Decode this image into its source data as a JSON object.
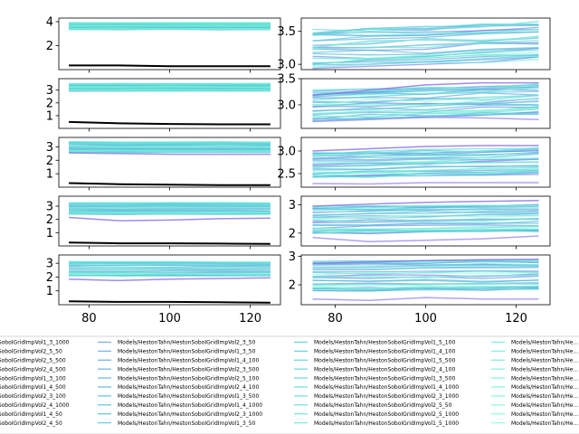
{
  "chart_data": {
    "type": "line",
    "layout": "5 rows x 2 columns of panels, shared x axis, legend below",
    "x": [
      75,
      87.5,
      100,
      112.5,
      125
    ],
    "xlim": [
      72.5,
      127.5
    ],
    "xticks": [
      "80",
      "100",
      "120"
    ],
    "colors": {
      "reference_line": "#000000",
      "palette_start": "#7b68ee",
      "palette_mid": "#40c4d8",
      "palette_end": "#7fffd4"
    },
    "panels": [
      {
        "id": "r1-left",
        "ylim": [
          0.0,
          4.3
        ],
        "yticks": [
          "2",
          "4"
        ],
        "reference": [
          0.35,
          0.35,
          0.28,
          0.28,
          0.28
        ],
        "band": {
          "low": 3.35,
          "high": 3.9,
          "n": 30,
          "noise": 0.03
        }
      },
      {
        "id": "r1-right",
        "ylim": [
          2.92,
          3.7
        ],
        "yticks": [
          "3.0",
          "3.5"
        ],
        "band": {
          "low": 2.97,
          "high": 3.5,
          "trend": 0.12,
          "n": 30,
          "noise": 0.04
        }
      },
      {
        "id": "r2-left",
        "ylim": [
          0.0,
          3.9
        ],
        "yticks": [
          "1",
          "2",
          "3"
        ],
        "reference": [
          0.5,
          0.4,
          0.35,
          0.32,
          0.32
        ],
        "band": {
          "low": 2.95,
          "high": 3.5,
          "n": 30,
          "noise": 0.03
        }
      },
      {
        "id": "r2-right",
        "ylim": [
          2.55,
          3.5
        ],
        "yticks": [
          "3.0",
          "3.5"
        ],
        "band": {
          "low": 2.72,
          "high": 3.25,
          "trend": 0.12,
          "n": 30,
          "noise": 0.04
        },
        "outliers": [
          [
            3.18,
            3.28,
            3.38,
            3.42,
            3.42
          ],
          [
            2.68,
            2.72,
            2.76,
            2.75,
            2.72
          ]
        ]
      },
      {
        "id": "r3-left",
        "ylim": [
          0.0,
          3.7
        ],
        "yticks": [
          "1",
          "2",
          "3"
        ],
        "reference": [
          0.3,
          0.22,
          0.18,
          0.15,
          0.15
        ],
        "band": {
          "low": 2.6,
          "high": 3.35,
          "n": 30,
          "noise": 0.03
        },
        "outliers": [
          [
            2.55,
            2.5,
            2.45,
            2.45,
            2.45
          ]
        ]
      },
      {
        "id": "r3-right",
        "ylim": [
          2.2,
          3.3
        ],
        "yticks": [
          "2.5",
          "3.0"
        ],
        "band": {
          "low": 2.42,
          "high": 2.95,
          "trend": 0.1,
          "n": 30,
          "noise": 0.04
        },
        "outliers": [
          [
            3.0,
            3.05,
            3.1,
            3.12,
            3.12
          ],
          [
            2.28,
            2.27,
            2.3,
            2.3,
            2.3
          ]
        ]
      },
      {
        "id": "r4-left",
        "ylim": [
          0.0,
          3.75
        ],
        "yticks": [
          "1",
          "2",
          "3"
        ],
        "reference": [
          0.25,
          0.2,
          0.2,
          0.18,
          0.15
        ],
        "band": {
          "low": 2.4,
          "high": 3.25,
          "n": 30,
          "noise": 0.03
        },
        "outliers": [
          [
            2.15,
            1.9,
            1.95,
            2.05,
            2.1
          ]
        ]
      },
      {
        "id": "r4-right",
        "ylim": [
          1.55,
          3.3
        ],
        "yticks": [
          "2",
          "3"
        ],
        "band": {
          "low": 2.0,
          "high": 2.9,
          "trend": 0.08,
          "n": 30,
          "noise": 0.05
        },
        "outliers": [
          [
            2.95,
            3.02,
            3.08,
            3.12,
            3.15
          ],
          [
            1.85,
            1.7,
            1.75,
            1.8,
            1.9
          ]
        ]
      },
      {
        "id": "r5-left",
        "ylim": [
          0.0,
          3.6
        ],
        "yticks": [
          "1",
          "2",
          "3"
        ],
        "reference": [
          0.25,
          0.2,
          0.2,
          0.18,
          0.15
        ],
        "band": {
          "low": 2.1,
          "high": 3.1,
          "n": 30,
          "noise": 0.03
        },
        "outliers": [
          [
            1.85,
            1.75,
            1.85,
            1.9,
            1.95
          ]
        ]
      },
      {
        "id": "r5-right",
        "ylim": [
          1.3,
          3.05
        ],
        "yticks": [
          "2",
          "3"
        ],
        "band": {
          "low": 1.8,
          "high": 2.8,
          "trend": 0.05,
          "n": 30,
          "noise": 0.05
        },
        "outliers": [
          [
            2.75,
            2.8,
            2.85,
            2.88,
            2.9
          ],
          [
            1.5,
            1.45,
            1.55,
            1.5,
            1.5
          ]
        ]
      }
    ],
    "legend": {
      "placement": "bottom",
      "columns": [
        [
          "…tonSoboIGridImpVol1_3_1000",
          "…tonSoboIGridImpVol2_5_50",
          "…tonSoboIGridImpVol2_5_500",
          "…tonSoboIGridImpVol2_4_500",
          "…tonSoboIGridImpVol1_3_100",
          "…tonSoboIGridImpVol1_4_500",
          "…tonSoboIGridImpVol2_3_100",
          "…tonSoboIGridImpVol2_4_1000",
          "…tonSoboIGridImpVol1_4_50",
          "…tonSoboIGridImpVol2_4_50"
        ],
        [
          "Models/HestonTahn/HestonSoboIGridImpVol2_3_50",
          "Models/HestonTahn/HestonSoboIGridImpVol1_3_50",
          "Models/HestonTahn/HestonSoboIGridImpVol1_4_100",
          "Models/HestonTahn/HestonSoboIGridImpVol2_3_500",
          "Models/HestonTahn/HestonSoboIGridImpVol2_5_100",
          "Models/HestonTahn/HestonSoboIGridImpVol2_4_100",
          "Models/HestonTahn/HestonSoboIGridImpVol1_3_500",
          "Models/HestonTahn/HestonSoboIGridImpVol1_4_1000",
          "Models/HestonTahn/HestonSoboIGridImpVol2_3_1000",
          "Models/HestonTahn/HestonSoboIGridImpVol1_3_50"
        ],
        [
          "Models/HestonTahn/HestonSoboIGridImpVol1_5_100",
          "Models/HestonTahn/HestonSoboIGridImpVol1_4_100",
          "Models/HestonTahn/HestonSoboIGridImpVol1_5_500",
          "Models/HestonTahn/HestonSoboIGridImpVol2_4_100",
          "Models/HestonTahn/HestonSoboIGridImpVol1_3_500",
          "Models/HestonTahn/HestonSoboIGridImpVol1_4_1000",
          "Models/HestonTahn/HestonSoboIGridImpVol2_3_1000",
          "Models/HestonTahn/HestonSoboIGridImpVol2_5_50",
          "Models/HestonTahn/HestonSoboIGridImpVol2_5_1000",
          "Models/HestonTahn/HestonSoboIGridImpVol1_5_1000"
        ],
        [
          "Models/HestonTahn/He…",
          "Models/HestonTahn/He…",
          "Models/HestonTahn/He…",
          "Models/HestonTahn/He…",
          "Models/HestonTahn/He…",
          "Models/HestonTahn/He…",
          "Models/HestonTahn/He…",
          "Models/HestonTahn/He…",
          "Models/HestonTahn/He…",
          "Models/HestonTahn/He…"
        ]
      ]
    }
  }
}
